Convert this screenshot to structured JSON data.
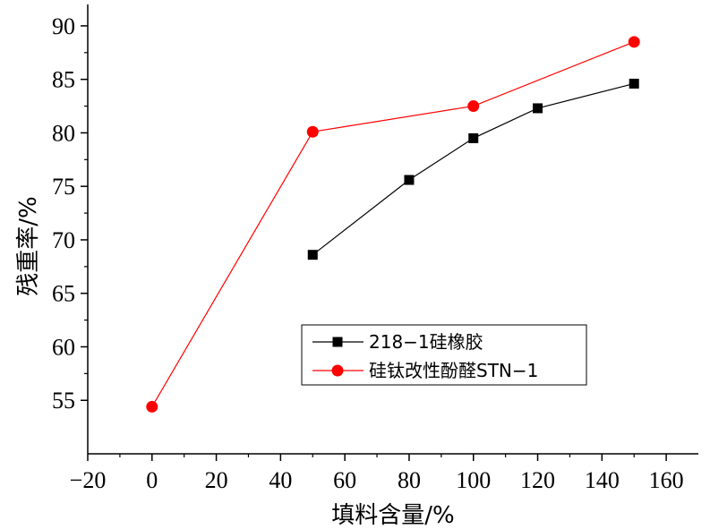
{
  "chart_data": {
    "type": "line",
    "xlabel": "填料含量/%",
    "ylabel": "残重率/%",
    "xlim": [
      -20,
      170
    ],
    "ylim": [
      50,
      92
    ],
    "x_ticks": [
      "−20",
      "0",
      "20",
      "40",
      "60",
      "80",
      "100",
      "120",
      "140",
      "160"
    ],
    "y_ticks": [
      "55",
      "60",
      "65",
      "70",
      "75",
      "80",
      "85",
      "90"
    ],
    "legend_position": "lower-right",
    "series": [
      {
        "name": "218−1硅橡胶",
        "color": "#000000",
        "marker": "square",
        "x": [
          50,
          80,
          100,
          120,
          150
        ],
        "y": [
          68.6,
          75.6,
          79.5,
          82.3,
          84.6
        ]
      },
      {
        "name": "硅钛改性酚醛STN−1",
        "color": "#ff0000",
        "marker": "circle",
        "x": [
          0,
          50,
          100,
          150
        ],
        "y": [
          54.4,
          80.1,
          82.5,
          88.5
        ]
      }
    ]
  }
}
